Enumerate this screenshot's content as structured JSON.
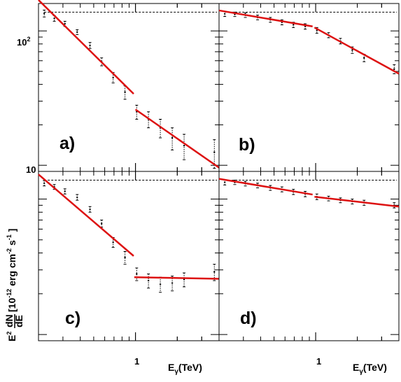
{
  "figure": {
    "ylabel_prefix": "E",
    "ylabel_sup": "2",
    "ylabel_frac_num": "dN",
    "ylabel_frac_den": "dE",
    "ylabel_unit": "[10",
    "ylabel_unit_exp": "-12",
    "ylabel_unit_rest": " erg cm",
    "ylabel_unit_exp2": "-2",
    "ylabel_unit_s": " s",
    "ylabel_unit_exp3": "-1",
    "ylabel_unit_close": " ]",
    "xlabel_main": "E",
    "xlabel_sub": "γ",
    "xlabel_unit": "(TeV)",
    "ytick_100": "10",
    "ytick_100_exp": "2",
    "ytick_10": "10",
    "xtick_1": "1",
    "colors": {
      "fit": "#dd1111",
      "data": "#000000",
      "reference": "#000000"
    }
  },
  "chart_data": [
    {
      "type": "scatter",
      "panel": "a)",
      "xscale": "log",
      "yscale": "log",
      "xlim": [
        0.2,
        4.0
      ],
      "ylim": [
        9.0,
        160.0
      ],
      "grid": false,
      "reference_line_y": 138,
      "points": [
        {
          "x": 0.22,
          "y": 135,
          "err": 8
        },
        {
          "x": 0.26,
          "y": 124,
          "err": 6
        },
        {
          "x": 0.31,
          "y": 113,
          "err": 5
        },
        {
          "x": 0.38,
          "y": 98,
          "err": 4
        },
        {
          "x": 0.47,
          "y": 78,
          "err": 4
        },
        {
          "x": 0.57,
          "y": 59,
          "err": 4
        },
        {
          "x": 0.69,
          "y": 45,
          "err": 4
        },
        {
          "x": 0.84,
          "y": 35,
          "err": 4
        },
        {
          "x": 1.02,
          "y": 25,
          "err": 3
        },
        {
          "x": 1.24,
          "y": 22,
          "err": 3
        },
        {
          "x": 1.51,
          "y": 19,
          "err": 3
        },
        {
          "x": 1.84,
          "y": 16,
          "err": 3
        },
        {
          "x": 2.24,
          "y": 14,
          "err": 3
        },
        {
          "x": 3.7,
          "y": 12.5,
          "err": 3
        }
      ],
      "fit_segments": [
        {
          "x": [
            0.2,
            0.97
          ],
          "y": [
            170,
            34
          ]
        },
        {
          "x": [
            1.0,
            4.0
          ],
          "y": [
            26,
            9.6
          ]
        }
      ]
    },
    {
      "type": "scatter",
      "panel": "b)",
      "xscale": "log",
      "yscale": "log",
      "xlim": [
        0.2,
        4.0
      ],
      "ylim": [
        9.0,
        160.0
      ],
      "grid": false,
      "reference_line_y": 138,
      "points": [
        {
          "x": 0.22,
          "y": 134,
          "err": 6
        },
        {
          "x": 0.26,
          "y": 133,
          "err": 5
        },
        {
          "x": 0.31,
          "y": 131,
          "err": 5
        },
        {
          "x": 0.38,
          "y": 126,
          "err": 5
        },
        {
          "x": 0.47,
          "y": 121,
          "err": 5
        },
        {
          "x": 0.57,
          "y": 116,
          "err": 5
        },
        {
          "x": 0.69,
          "y": 111,
          "err": 5
        },
        {
          "x": 0.84,
          "y": 108,
          "err": 5
        },
        {
          "x": 1.02,
          "y": 101,
          "err": 5
        },
        {
          "x": 1.24,
          "y": 93,
          "err": 4
        },
        {
          "x": 1.51,
          "y": 84,
          "err": 4
        },
        {
          "x": 1.84,
          "y": 72,
          "err": 4
        },
        {
          "x": 2.24,
          "y": 63,
          "err": 4
        },
        {
          "x": 3.7,
          "y": 52,
          "err": 4
        }
      ],
      "fit_segments": [
        {
          "x": [
            0.2,
            0.95
          ],
          "y": [
            142,
            108
          ]
        },
        {
          "x": [
            0.98,
            4.0
          ],
          "y": [
            106,
            48
          ]
        }
      ]
    },
    {
      "type": "scatter",
      "panel": "c)",
      "xscale": "log",
      "yscale": "log",
      "xlim": [
        0.2,
        4.0
      ],
      "ylim": [
        9.0,
        160.0
      ],
      "grid": false,
      "reference_line_y": 138,
      "points": [
        {
          "x": 0.22,
          "y": 131,
          "err": 6
        },
        {
          "x": 0.26,
          "y": 123,
          "err": 5
        },
        {
          "x": 0.31,
          "y": 114,
          "err": 5
        },
        {
          "x": 0.38,
          "y": 103,
          "err": 5
        },
        {
          "x": 0.47,
          "y": 84,
          "err": 4
        },
        {
          "x": 0.57,
          "y": 66,
          "err": 4
        },
        {
          "x": 0.69,
          "y": 48,
          "err": 4
        },
        {
          "x": 0.84,
          "y": 37,
          "err": 4
        },
        {
          "x": 1.02,
          "y": 28,
          "err": 3
        },
        {
          "x": 1.24,
          "y": 25,
          "err": 3
        },
        {
          "x": 1.51,
          "y": 23.5,
          "err": 3
        },
        {
          "x": 1.84,
          "y": 24,
          "err": 3
        },
        {
          "x": 2.24,
          "y": 25.5,
          "err": 3
        },
        {
          "x": 3.7,
          "y": 29,
          "err": 4
        }
      ],
      "fit_segments": [
        {
          "x": [
            0.2,
            0.97
          ],
          "y": [
            152,
            38
          ]
        },
        {
          "x": [
            0.98,
            4.0
          ],
          "y": [
            26.5,
            25.8
          ]
        }
      ]
    },
    {
      "type": "scatter",
      "panel": "d)",
      "xscale": "log",
      "yscale": "log",
      "xlim": [
        0.2,
        4.0
      ],
      "ylim": [
        9.0,
        160.0
      ],
      "grid": false,
      "reference_line_y": 138,
      "points": [
        {
          "x": 0.22,
          "y": 133,
          "err": 6
        },
        {
          "x": 0.26,
          "y": 133,
          "err": 5
        },
        {
          "x": 0.31,
          "y": 130,
          "err": 5
        },
        {
          "x": 0.38,
          "y": 126,
          "err": 5
        },
        {
          "x": 0.47,
          "y": 121,
          "err": 5
        },
        {
          "x": 0.57,
          "y": 118,
          "err": 5
        },
        {
          "x": 0.69,
          "y": 113,
          "err": 5
        },
        {
          "x": 0.84,
          "y": 109,
          "err": 5
        },
        {
          "x": 1.02,
          "y": 104,
          "err": 5
        },
        {
          "x": 1.24,
          "y": 101,
          "err": 4
        },
        {
          "x": 1.51,
          "y": 98,
          "err": 4
        },
        {
          "x": 1.84,
          "y": 96,
          "err": 4
        },
        {
          "x": 2.24,
          "y": 94,
          "err": 4
        },
        {
          "x": 3.7,
          "y": 90,
          "err": 4
        }
      ],
      "fit_segments": [
        {
          "x": [
            0.2,
            0.95
          ],
          "y": [
            141,
            108
          ]
        },
        {
          "x": [
            0.98,
            4.0
          ],
          "y": [
            104,
            88
          ]
        }
      ]
    }
  ]
}
